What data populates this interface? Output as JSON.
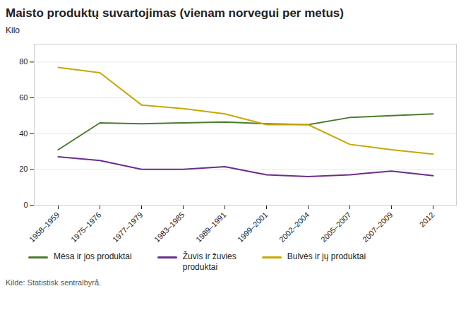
{
  "chart_data": {
    "type": "line",
    "title": "Maisto produktų suvartojimas (vienam norvegui per metus)",
    "ylabel": "Kilo",
    "source": "Kilde: Statistisk sentralbyrå.",
    "categories": [
      "1958–1959",
      "1975–1976",
      "1977–1979",
      "1983–1985",
      "1989–1991",
      "1999–2001",
      "2002–2004",
      "2005–2007",
      "2007–2009",
      "2012"
    ],
    "series": [
      {
        "name": "Mėsa ir jos produktai",
        "color": "#4a7c2f",
        "values": [
          31,
          46,
          45.5,
          46,
          46.5,
          45.5,
          45,
          49,
          50,
          51
        ]
      },
      {
        "name": "Žuvis ir žuvies\nproduktai",
        "color": "#6b2d8b",
        "values": [
          27,
          25,
          20,
          20,
          21.5,
          17,
          16,
          17,
          19,
          16.5
        ]
      },
      {
        "name": "Bulvės ir jų produktai",
        "color": "#c8a800",
        "values": [
          77,
          74,
          56,
          54,
          51,
          45,
          45,
          34,
          31,
          28.5
        ]
      }
    ],
    "ylim": [
      0,
      90
    ],
    "yticks": [
      0,
      20,
      40,
      60,
      80
    ],
    "grid": true,
    "legend": "bottom"
  }
}
